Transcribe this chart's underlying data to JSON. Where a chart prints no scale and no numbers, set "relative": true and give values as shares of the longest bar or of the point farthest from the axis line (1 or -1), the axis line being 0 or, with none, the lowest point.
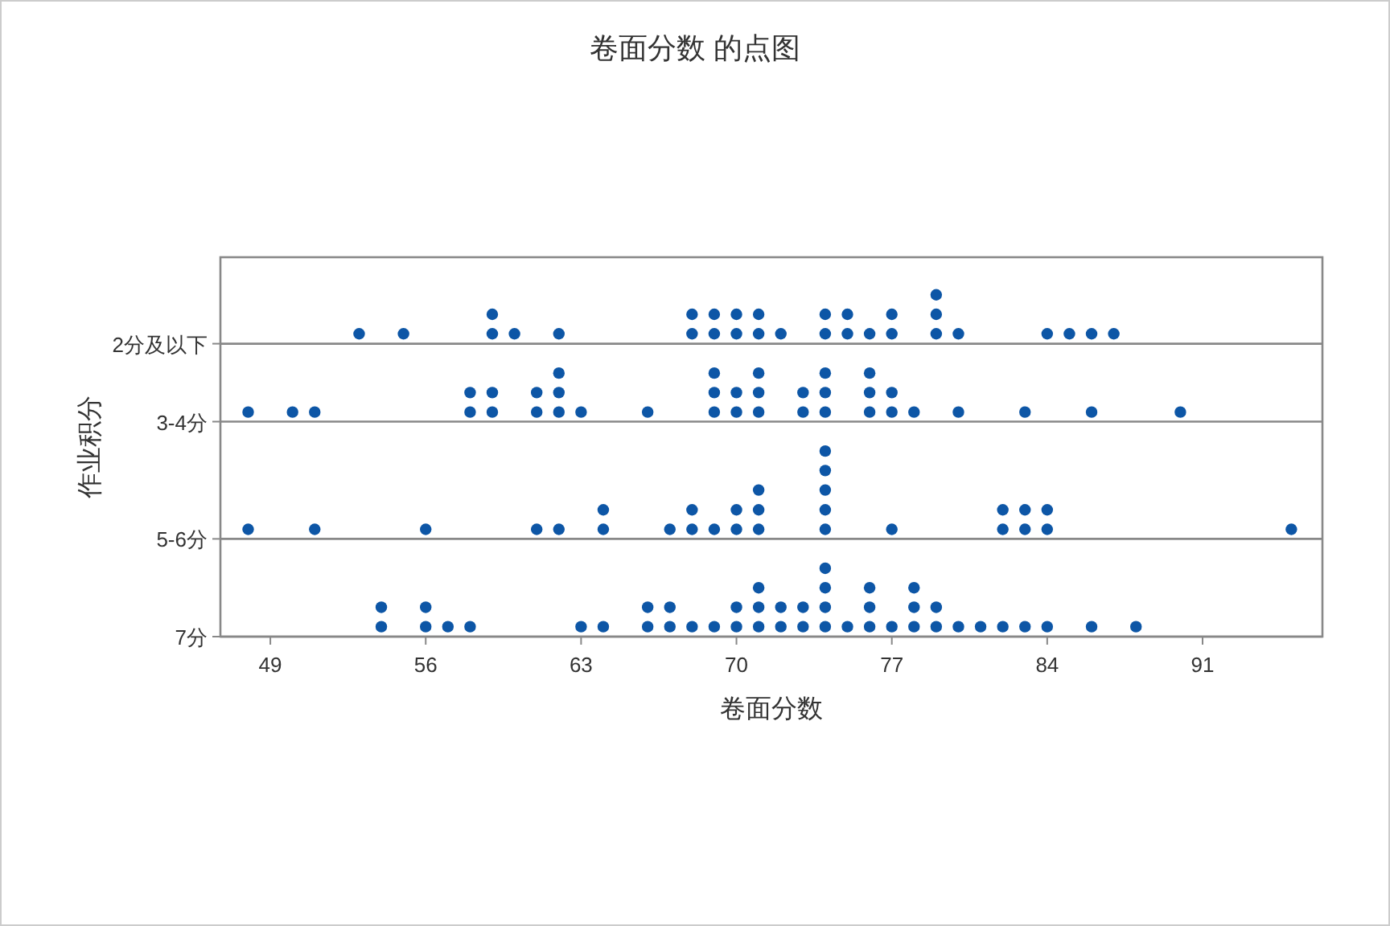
{
  "chart_data": {
    "type": "scatter",
    "title": "卷面分数 的点图",
    "xlabel": "卷面分数",
    "ylabel": "作业积分",
    "marker": "circle",
    "relative": true,
    "xlim": [
      46.75,
      96.4
    ],
    "xticks": [
      49,
      56,
      63,
      70,
      77,
      84,
      91
    ],
    "ref_lines": [
      {
        "axis": "y",
        "value": 0,
        "label": "7分",
        "color": "#888888"
      },
      {
        "axis": "y",
        "value": 0.286,
        "label": "5-6分",
        "color": "#888888"
      },
      {
        "axis": "y",
        "value": 0.629,
        "label": "3-4分",
        "color": "#888888"
      },
      {
        "axis": "y",
        "value": 0.857,
        "label": "2分及以下",
        "color": "#888888"
      }
    ],
    "series": [
      {
        "color": "#0d56a6",
        "x": [
          53,
          55,
          59,
          59,
          60,
          62,
          68,
          68,
          69,
          69,
          70,
          70,
          71,
          71,
          72,
          74,
          74,
          75,
          75,
          76,
          77,
          77,
          79,
          79,
          79,
          80,
          84,
          85,
          86,
          87
        ],
        "values": [
          0.886,
          0.886,
          0.886,
          0.943,
          0.886,
          0.886,
          0.886,
          0.943,
          0.886,
          0.943,
          0.886,
          0.943,
          0.886,
          0.943,
          0.886,
          0.886,
          0.943,
          0.886,
          0.943,
          0.886,
          0.886,
          0.943,
          0.886,
          0.943,
          1,
          0.886,
          0.886,
          0.886,
          0.886,
          0.886
        ]
      },
      {
        "color": "#0d56a6",
        "x": [
          48,
          50,
          51,
          58,
          58,
          59,
          59,
          61,
          61,
          62,
          62,
          62,
          63,
          66,
          69,
          69,
          69,
          70,
          70,
          71,
          71,
          71,
          73,
          73,
          74,
          74,
          74,
          76,
          76,
          76,
          77,
          77,
          78,
          80,
          83,
          86,
          90
        ],
        "values": [
          0.657,
          0.657,
          0.657,
          0.657,
          0.714,
          0.657,
          0.714,
          0.657,
          0.714,
          0.657,
          0.714,
          0.771,
          0.657,
          0.657,
          0.657,
          0.714,
          0.771,
          0.657,
          0.714,
          0.657,
          0.714,
          0.771,
          0.657,
          0.714,
          0.657,
          0.714,
          0.771,
          0.657,
          0.714,
          0.771,
          0.657,
          0.714,
          0.657,
          0.657,
          0.657,
          0.657,
          0.657
        ]
      },
      {
        "color": "#0d56a6",
        "x": [
          48,
          51,
          56,
          61,
          62,
          64,
          64,
          67,
          68,
          68,
          69,
          70,
          70,
          71,
          71,
          71,
          74,
          74,
          74,
          74,
          74,
          77,
          82,
          82,
          83,
          83,
          84,
          84,
          95
        ],
        "values": [
          0.314,
          0.314,
          0.314,
          0.314,
          0.314,
          0.314,
          0.371,
          0.314,
          0.314,
          0.371,
          0.314,
          0.314,
          0.371,
          0.314,
          0.371,
          0.429,
          0.314,
          0.371,
          0.429,
          0.486,
          0.543,
          0.314,
          0.314,
          0.371,
          0.314,
          0.371,
          0.314,
          0.371,
          0.314
        ]
      },
      {
        "color": "#0d56a6",
        "x": [
          54,
          54,
          56,
          56,
          57,
          58,
          63,
          64,
          66,
          66,
          67,
          67,
          68,
          69,
          70,
          70,
          71,
          71,
          71,
          72,
          72,
          73,
          73,
          74,
          74,
          74,
          74,
          75,
          76,
          76,
          76,
          77,
          78,
          78,
          78,
          79,
          79,
          80,
          81,
          82,
          83,
          84,
          86,
          88
        ],
        "values": [
          0.029,
          0.086,
          0.029,
          0.086,
          0.029,
          0.029,
          0.029,
          0.029,
          0.029,
          0.086,
          0.029,
          0.086,
          0.029,
          0.029,
          0.029,
          0.086,
          0.029,
          0.086,
          0.143,
          0.029,
          0.086,
          0.029,
          0.086,
          0.029,
          0.086,
          0.143,
          0.2,
          0.029,
          0.029,
          0.086,
          0.143,
          0.029,
          0.029,
          0.086,
          0.143,
          0.029,
          0.086,
          0.029,
          0.029,
          0.029,
          0.029,
          0.029,
          0.029,
          0.029
        ]
      }
    ]
  }
}
